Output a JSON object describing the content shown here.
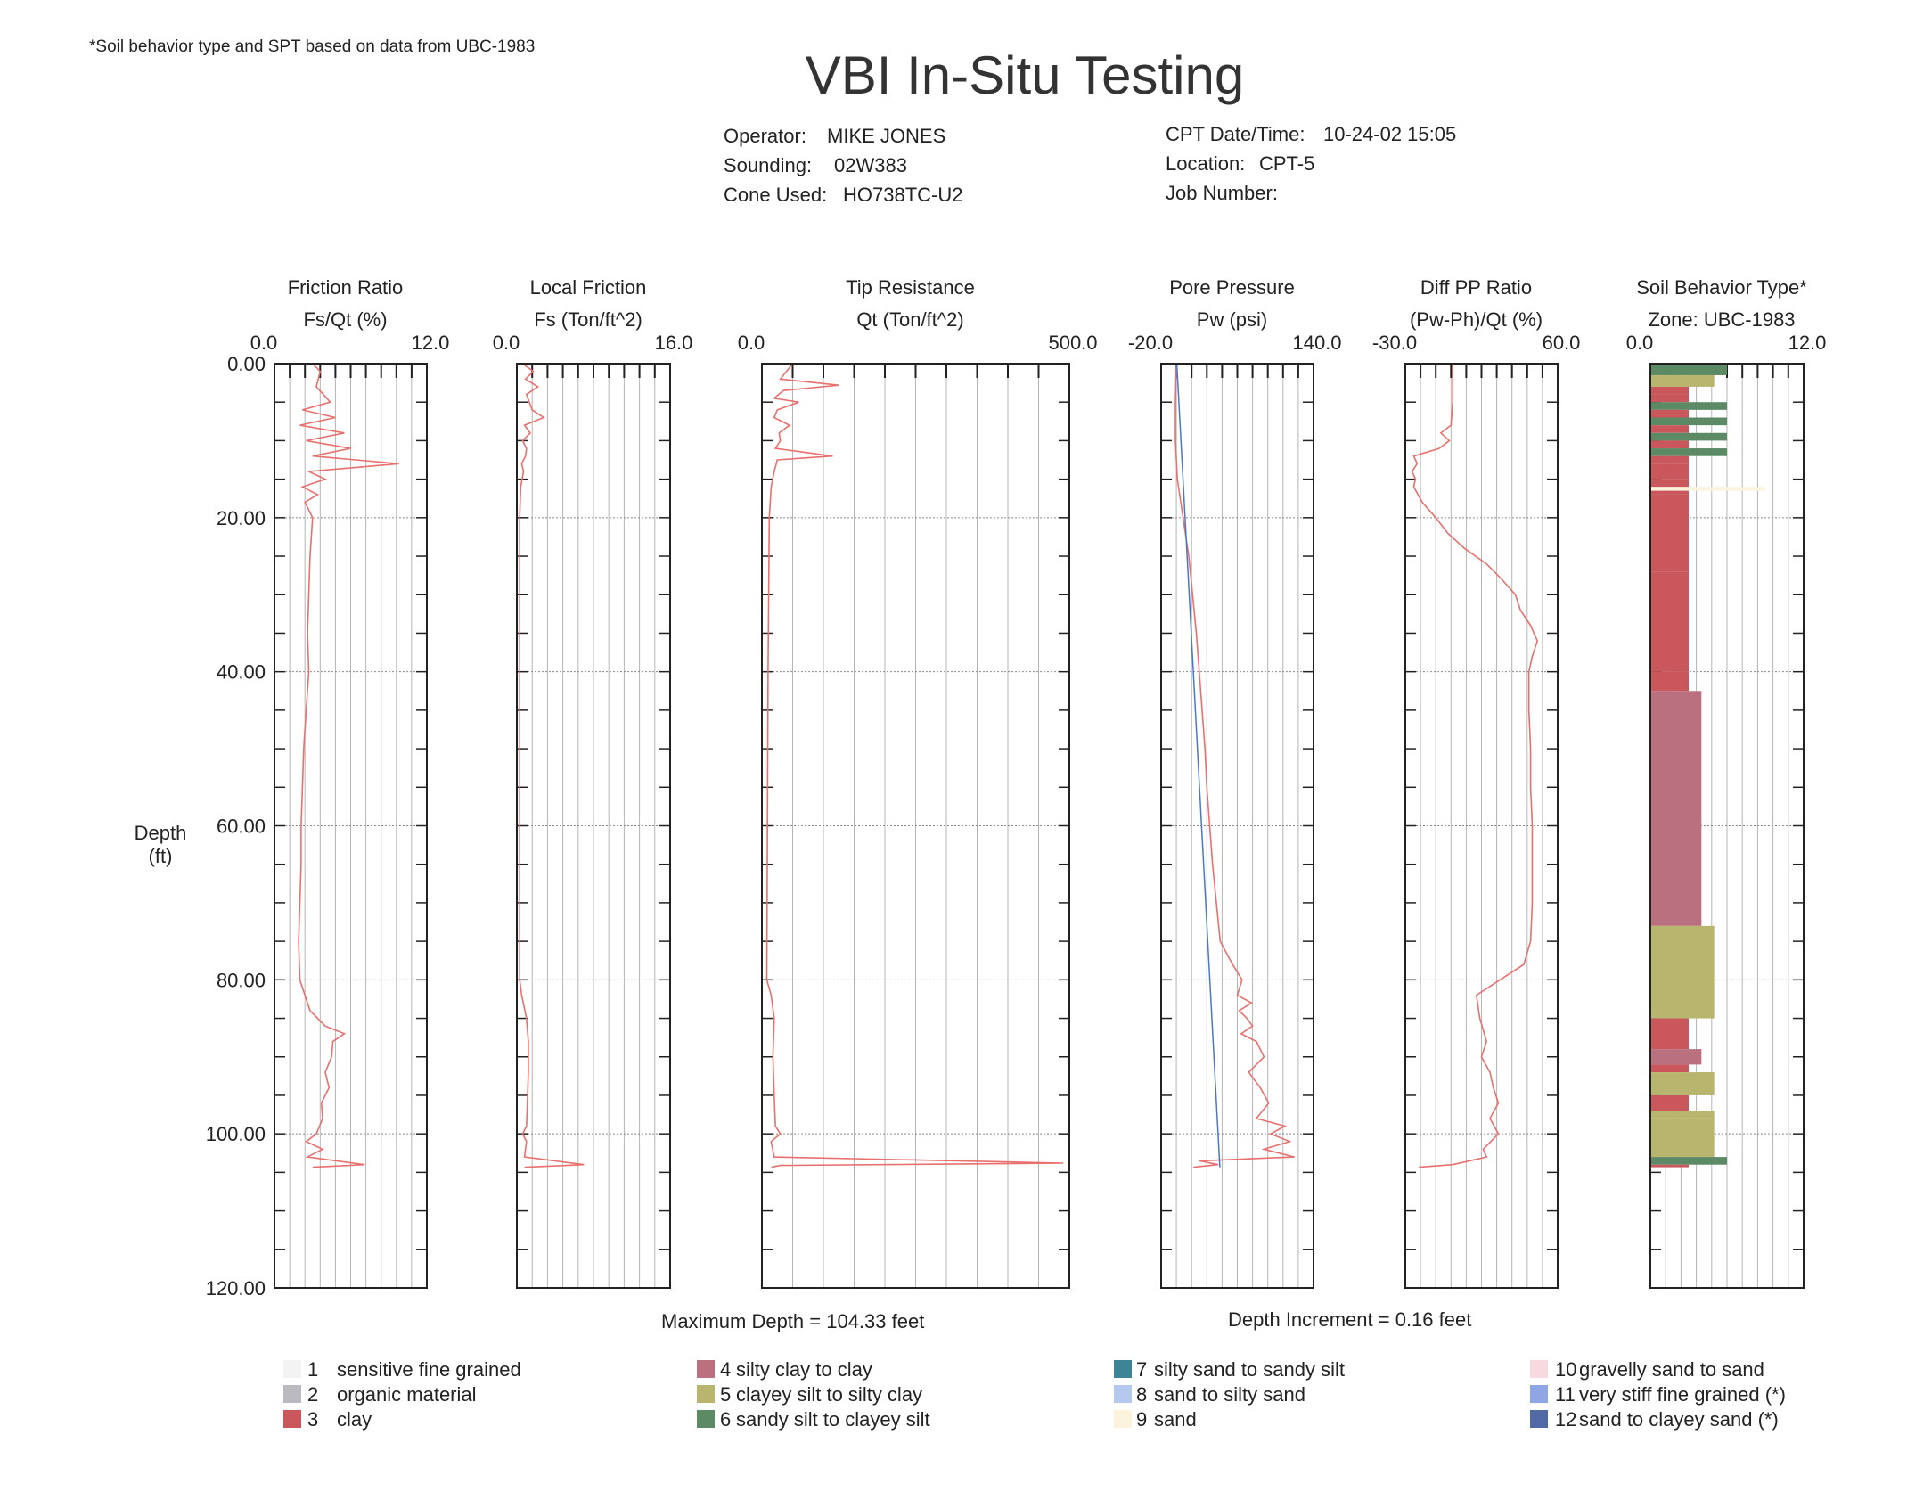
{
  "note": "*Soil behavior type and SPT based on data from UBC-1983",
  "title": "VBI In-Situ Testing",
  "meta": {
    "operator_label": "Operator:",
    "operator": "MIKE JONES",
    "sounding_label": "Sounding:",
    "sounding": "02W383",
    "cone_label": "Cone Used:",
    "cone": "HO738TC-U2",
    "date_label": "CPT Date/Time:",
    "date": "10-24-02 15:05",
    "location_label": "Location:",
    "location": "CPT-5",
    "job_label": "Job Number:",
    "job": ""
  },
  "depth_axis": {
    "label_line1": "Depth",
    "label_line2": "(ft)",
    "ticks": [
      "0.00",
      "20.00",
      "40.00",
      "60.00",
      "80.00",
      "100.00",
      "120.00"
    ]
  },
  "footer": {
    "max_depth": "Maximum Depth = 104.33 feet",
    "increment": "Depth Increment = 0.16 feet"
  },
  "colors": {
    "trace": "#e8706e",
    "hydrostatic": "#4a78c8",
    "frame": "#222222",
    "grid": "#999999"
  },
  "legend": [
    {
      "num": "1",
      "label": "sensitive fine grained",
      "color": "#f3f3f3"
    },
    {
      "num": "2",
      "label": "organic material",
      "color": "#b9b9bf"
    },
    {
      "num": "3",
      "label": "clay",
      "color": "#c9575c"
    },
    {
      "num": "4",
      "label": "silty clay to clay",
      "color": "#bb7080"
    },
    {
      "num": "5",
      "label": "clayey silt to silty clay",
      "color": "#b8b66e"
    },
    {
      "num": "6",
      "label": "sandy silt to clayey silt",
      "color": "#5c8a65"
    },
    {
      "num": "7",
      "label": "silty sand to sandy silt",
      "color": "#3d8596"
    },
    {
      "num": "8",
      "label": "sand to silty sand",
      "color": "#b5c8ee"
    },
    {
      "num": "9",
      "label": "sand",
      "color": "#fbf3dc"
    },
    {
      "num": "10",
      "label": "gravelly sand to sand",
      "color": "#f8d9df"
    },
    {
      "num": "11",
      "label": "very stiff fine grained (*)",
      "color": "#8ea6e3"
    },
    {
      "num": "12",
      "label": "sand to clayey sand (*)",
      "color": "#506aa6"
    }
  ],
  "chart_data": [
    {
      "type": "line",
      "title": "Friction Ratio",
      "xlabel": "Fs/Qt (%)",
      "ylabel": "Depth (ft)",
      "xlim": [
        0,
        12
      ],
      "ylim": [
        0,
        120
      ],
      "x_tick_labels": [
        "0.0",
        "12.0"
      ],
      "grid": true,
      "series": [
        {
          "y": [
            0,
            1,
            3,
            5,
            6,
            7,
            8,
            9,
            10,
            11,
            12,
            13,
            14,
            15,
            16,
            17,
            18,
            20,
            25,
            30,
            35,
            40,
            45,
            50,
            55,
            60,
            65,
            70,
            75,
            80,
            82,
            84,
            86,
            87,
            88,
            90,
            92,
            94,
            96,
            98,
            100,
            101,
            102,
            103,
            104,
            104.33
          ],
          "x": [
            3.0,
            3.6,
            3.3,
            4.4,
            2.2,
            4.8,
            2.0,
            5.5,
            2.5,
            6.0,
            3.0,
            9.8,
            2.7,
            4.0,
            2.2,
            3.4,
            2.4,
            3.0,
            2.8,
            2.7,
            2.6,
            2.7,
            2.5,
            2.3,
            2.2,
            2.1,
            2.1,
            2.0,
            1.9,
            2.0,
            2.4,
            2.8,
            4.0,
            5.5,
            4.6,
            4.5,
            4.0,
            4.3,
            3.7,
            3.8,
            3.3,
            2.5,
            3.8,
            2.6,
            7.1,
            3.0
          ]
        }
      ]
    },
    {
      "type": "line",
      "title": "Local Friction",
      "xlabel": "Fs (Ton/ft^2)",
      "ylabel": "Depth (ft)",
      "xlim": [
        0,
        16
      ],
      "ylim": [
        0,
        120
      ],
      "x_tick_labels": [
        "0.0",
        "16.0"
      ],
      "grid": true,
      "series": [
        {
          "y": [
            0,
            1,
            2,
            3,
            4,
            6,
            7,
            8,
            9,
            10,
            11,
            12,
            13,
            14,
            16,
            20,
            40,
            60,
            80,
            82,
            85,
            88,
            92,
            96,
            99,
            100,
            101,
            103,
            104,
            104.33
          ],
          "x": [
            0.6,
            1.7,
            0.9,
            2.2,
            1.0,
            1.6,
            2.8,
            0.8,
            1.4,
            0.6,
            1.0,
            0.9,
            0.5,
            0.7,
            0.4,
            0.3,
            0.3,
            0.3,
            0.3,
            0.5,
            1.0,
            1.2,
            1.2,
            1.1,
            1.0,
            0.6,
            1.0,
            0.8,
            7.0,
            0.8
          ]
        }
      ]
    },
    {
      "type": "line",
      "title": "Tip Resistance",
      "xlabel": "Qt (Ton/ft^2)",
      "ylabel": "Depth (ft)",
      "xlim": [
        0,
        500
      ],
      "ylim": [
        0,
        120
      ],
      "x_tick_labels": [
        "0.0",
        "500.0"
      ],
      "grid": true,
      "series": [
        {
          "y": [
            0,
            1,
            2,
            2.8,
            3.5,
            4.5,
            5,
            6,
            7,
            8,
            9,
            10,
            11,
            12,
            12.5,
            14,
            16,
            20,
            40,
            60,
            80,
            82,
            85,
            90,
            95,
            99,
            100,
            101,
            103,
            103.8,
            104.1,
            104.33
          ],
          "x": [
            50,
            40,
            30,
            125,
            35,
            20,
            60,
            25,
            20,
            45,
            28,
            30,
            22,
            115,
            25,
            20,
            15,
            12,
            10,
            9,
            8,
            15,
            20,
            18,
            20,
            22,
            30,
            15,
            20,
            490,
            30,
            15
          ]
        }
      ]
    },
    {
      "type": "line",
      "title": "Pore Pressure",
      "xlabel": "Pw (psi)",
      "ylabel": "Depth (ft)",
      "xlim": [
        -20,
        140
      ],
      "ylim": [
        0,
        120
      ],
      "x_tick_labels": [
        "-20.0",
        "140.0"
      ],
      "grid": true,
      "series": [
        {
          "name": "Pw",
          "y": [
            0,
            5,
            10,
            15,
            20,
            25,
            30,
            35,
            40,
            45,
            50,
            55,
            60,
            65,
            70,
            75,
            78,
            80,
            82,
            83,
            84,
            85,
            86,
            87,
            88,
            90,
            92,
            94,
            96,
            98,
            99,
            100,
            101,
            102,
            103,
            103.5,
            104,
            104.33
          ],
          "x": [
            -4,
            -5,
            -5,
            -3,
            3,
            9,
            13,
            17,
            20,
            23,
            26,
            28,
            31,
            34,
            38,
            42,
            55,
            65,
            60,
            75,
            62,
            70,
            76,
            64,
            80,
            88,
            72,
            84,
            93,
            80,
            110,
            95,
            115,
            88,
            120,
            20,
            40,
            14
          ]
        },
        {
          "name": "Hydrostatic",
          "y": [
            0,
            104.33
          ],
          "x": [
            -3.5,
            41.7
          ]
        }
      ]
    },
    {
      "type": "line",
      "title": "Diff PP Ratio",
      "xlabel": "(Pw-Ph)/Qt (%)",
      "ylabel": "Depth (ft)",
      "xlim": [
        -30,
        60
      ],
      "ylim": [
        0,
        120
      ],
      "x_tick_labels": [
        "-30.0",
        "60.0"
      ],
      "grid": true,
      "series": [
        {
          "y": [
            0,
            5,
            8,
            9,
            10,
            11,
            12,
            13,
            14,
            15,
            16,
            18,
            20,
            22,
            24,
            26,
            28,
            30,
            32,
            34,
            36,
            38,
            40,
            45,
            50,
            55,
            60,
            65,
            70,
            75,
            78,
            80,
            82,
            85,
            88,
            90,
            92,
            94,
            96,
            98,
            100,
            102,
            103,
            104,
            104.33
          ],
          "x": [
            -2,
            -2,
            -3,
            -9,
            -4,
            -10,
            -25,
            -23,
            -26,
            -24,
            -25,
            -20,
            -12,
            -5,
            5,
            18,
            27,
            35,
            38,
            44,
            48,
            45,
            43,
            43,
            44,
            44,
            45,
            45,
            45,
            44,
            40,
            26,
            12,
            14,
            18,
            15,
            20,
            22,
            25,
            20,
            25,
            16,
            18,
            -2,
            -22
          ]
        }
      ]
    },
    {
      "type": "bar",
      "title": "Soil Behavior Type*",
      "xlabel": "Zone: UBC-1983",
      "ylabel": "Depth (ft)",
      "xlim": [
        0,
        12
      ],
      "ylim": [
        0,
        120
      ],
      "x_tick_labels": [
        "0.0",
        "12.0"
      ],
      "grid": true,
      "depth_top": [
        0,
        1.5,
        3,
        4,
        5,
        6,
        7,
        8,
        9,
        10,
        11,
        12,
        13,
        15,
        16,
        16.5,
        17,
        27,
        40,
        42.5,
        73,
        85,
        89,
        91,
        92,
        95,
        97,
        98,
        103,
        104
      ],
      "depth_bottom": [
        1.5,
        3,
        4,
        5,
        6,
        7,
        8,
        9,
        10,
        11,
        12,
        13,
        15,
        16,
        16.5,
        17,
        27,
        40,
        42.5,
        73,
        85,
        89,
        91,
        92,
        95,
        97,
        98,
        103,
        104,
        104.33
      ],
      "zones": [
        6,
        5,
        3,
        3,
        6,
        3,
        6,
        3,
        6,
        3,
        6,
        3,
        3,
        3,
        9,
        3,
        3,
        3,
        3,
        4,
        5,
        3,
        4,
        3,
        5,
        3,
        5,
        5,
        6,
        3
      ]
    }
  ]
}
